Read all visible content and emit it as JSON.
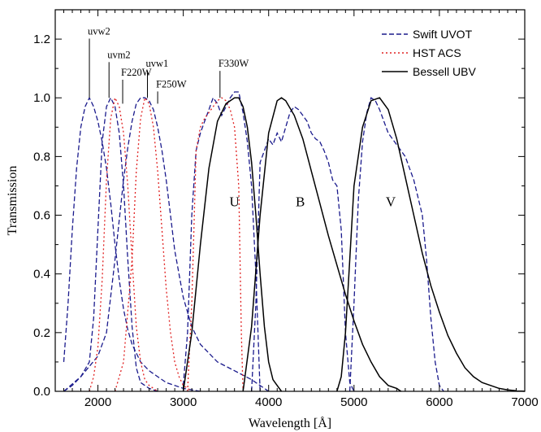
{
  "chart_data": {
    "type": "line",
    "xlabel": "Wavelength [Å]",
    "ylabel": "Transmission",
    "xlim": [
      1500,
      7000
    ],
    "ylim": [
      0,
      1.3
    ],
    "x_ticks": [
      2000,
      3000,
      4000,
      5000,
      6000,
      7000
    ],
    "y_ticks": [
      0.0,
      0.2,
      0.4,
      0.6,
      0.8,
      1.0,
      1.2
    ],
    "grid": false,
    "legend_position": "top-right",
    "legend": [
      {
        "label": "Swift UVOT",
        "style": "dashed",
        "color": "#1a1a8c"
      },
      {
        "label": "HST ACS",
        "style": "dotted",
        "color": "#e02020"
      },
      {
        "label": "Bessell UBV",
        "style": "solid",
        "color": "#000000"
      }
    ],
    "annotations": [
      {
        "text": "uvw2",
        "x": 1900,
        "y": 1.0,
        "ty": 1.21
      },
      {
        "text": "uvm2",
        "x": 2130,
        "y": 1.0,
        "ty": 1.13
      },
      {
        "text": "uvw1",
        "x": 2580,
        "y": 1.0,
        "ty": 1.1
      },
      {
        "text": "F220W",
        "x": 2290,
        "y": 0.98,
        "ty": 1.07
      },
      {
        "text": "F250W",
        "x": 2700,
        "y": 0.98,
        "ty": 1.03
      },
      {
        "text": "F330W",
        "x": 3430,
        "y": 1.0,
        "ty": 1.1
      }
    ],
    "band_labels": [
      {
        "text": "U",
        "x": 3600,
        "y": 0.63
      },
      {
        "text": "B",
        "x": 4370,
        "y": 0.63
      },
      {
        "text": "V",
        "x": 5430,
        "y": 0.63
      }
    ],
    "series": [
      {
        "name": "uvw2",
        "group": "Swift UVOT",
        "x": [
          1600,
          1650,
          1700,
          1750,
          1800,
          1850,
          1900,
          1950,
          2000,
          2050,
          2100,
          2150,
          2200,
          2250,
          2300,
          2350,
          2400,
          2500,
          2600,
          2700,
          2800,
          2900,
          3000,
          3100,
          3200
        ],
        "y": [
          0.1,
          0.3,
          0.55,
          0.76,
          0.9,
          0.97,
          1.0,
          0.97,
          0.92,
          0.85,
          0.76,
          0.64,
          0.5,
          0.38,
          0.28,
          0.21,
          0.16,
          0.1,
          0.07,
          0.05,
          0.03,
          0.02,
          0.01,
          0.005,
          0.0
        ]
      },
      {
        "name": "uvm2",
        "group": "Swift UVOT",
        "x": [
          1600,
          1700,
          1800,
          1900,
          1950,
          2000,
          2050,
          2100,
          2150,
          2200,
          2250,
          2300,
          2350,
          2400,
          2450,
          2500,
          2600,
          2700
        ],
        "y": [
          0.0,
          0.02,
          0.05,
          0.1,
          0.25,
          0.55,
          0.85,
          0.97,
          1.0,
          0.97,
          0.88,
          0.7,
          0.45,
          0.22,
          0.08,
          0.03,
          0.01,
          0.0
        ]
      },
      {
        "name": "uvw1",
        "group": "Swift UVOT",
        "x": [
          1600,
          1800,
          2000,
          2100,
          2200,
          2300,
          2350,
          2400,
          2450,
          2500,
          2550,
          2600,
          2650,
          2700,
          2750,
          2800,
          2850,
          2900,
          3000,
          3100,
          3200,
          3400,
          3600,
          3800,
          4000
        ],
        "y": [
          0.0,
          0.05,
          0.12,
          0.2,
          0.45,
          0.72,
          0.83,
          0.92,
          0.98,
          1.0,
          1.0,
          0.99,
          0.96,
          0.9,
          0.82,
          0.72,
          0.6,
          0.48,
          0.32,
          0.22,
          0.16,
          0.1,
          0.07,
          0.04,
          0.0
        ]
      },
      {
        "name": "u",
        "group": "Swift UVOT",
        "x": [
          3000,
          3050,
          3100,
          3150,
          3200,
          3250,
          3300,
          3350,
          3400,
          3450,
          3500,
          3550,
          3600,
          3650,
          3700,
          3750,
          3800,
          3850,
          3900
        ],
        "y": [
          0.02,
          0.2,
          0.6,
          0.82,
          0.88,
          0.92,
          0.96,
          1.0,
          0.98,
          0.94,
          0.97,
          1.0,
          1.02,
          1.02,
          0.95,
          0.85,
          0.7,
          0.4,
          0.0
        ]
      },
      {
        "name": "b",
        "group": "Swift UVOT",
        "x": [
          3800,
          3850,
          3900,
          3950,
          4000,
          4050,
          4100,
          4150,
          4200,
          4250,
          4300,
          4350,
          4400,
          4450,
          4500,
          4550,
          4600,
          4650,
          4700,
          4750,
          4800,
          4850,
          4900,
          4950,
          5000
        ],
        "y": [
          0.0,
          0.3,
          0.78,
          0.82,
          0.86,
          0.84,
          0.88,
          0.85,
          0.9,
          0.95,
          0.97,
          0.96,
          0.94,
          0.92,
          0.88,
          0.86,
          0.85,
          0.82,
          0.78,
          0.72,
          0.7,
          0.55,
          0.2,
          0.03,
          0.0
        ]
      },
      {
        "name": "v",
        "group": "Swift UVOT",
        "x": [
          4950,
          5000,
          5050,
          5100,
          5150,
          5200,
          5250,
          5300,
          5350,
          5400,
          5500,
          5600,
          5700,
          5800,
          5850,
          5900,
          5950,
          6000,
          6050
        ],
        "y": [
          0.0,
          0.3,
          0.65,
          0.85,
          0.95,
          1.0,
          0.99,
          0.96,
          0.92,
          0.88,
          0.84,
          0.8,
          0.72,
          0.6,
          0.45,
          0.25,
          0.1,
          0.02,
          0.0
        ]
      },
      {
        "name": "F220W",
        "group": "HST ACS",
        "x": [
          1900,
          1950,
          2000,
          2050,
          2100,
          2150,
          2200,
          2250,
          2300,
          2350,
          2400,
          2450,
          2500,
          2550,
          2600,
          2650,
          2700
        ],
        "y": [
          0.0,
          0.05,
          0.15,
          0.38,
          0.72,
          0.93,
          1.0,
          0.97,
          0.88,
          0.7,
          0.45,
          0.22,
          0.1,
          0.04,
          0.02,
          0.01,
          0.0
        ]
      },
      {
        "name": "F250W",
        "group": "HST ACS",
        "x": [
          2200,
          2300,
          2400,
          2450,
          2500,
          2550,
          2600,
          2650,
          2700,
          2750,
          2800,
          2850,
          2900,
          2950,
          3000,
          3050,
          3100
        ],
        "y": [
          0.0,
          0.1,
          0.45,
          0.75,
          0.93,
          1.0,
          0.98,
          0.9,
          0.75,
          0.55,
          0.35,
          0.2,
          0.1,
          0.05,
          0.02,
          0.01,
          0.0
        ]
      },
      {
        "name": "F330W",
        "group": "HST ACS",
        "x": [
          3050,
          3100,
          3120,
          3150,
          3200,
          3250,
          3300,
          3350,
          3400,
          3450,
          3500,
          3550,
          3600,
          3650,
          3680,
          3700
        ],
        "y": [
          0.0,
          0.3,
          0.5,
          0.82,
          0.9,
          0.93,
          0.95,
          0.97,
          0.99,
          1.0,
          0.99,
          0.96,
          0.9,
          0.7,
          0.2,
          0.0
        ]
      },
      {
        "name": "U",
        "group": "Bessell UBV",
        "x": [
          3000,
          3100,
          3200,
          3300,
          3400,
          3500,
          3600,
          3650,
          3700,
          3750,
          3800,
          3850,
          3900,
          3950,
          4000,
          4050,
          4100,
          4150
        ],
        "y": [
          0.0,
          0.2,
          0.5,
          0.76,
          0.92,
          0.98,
          1.0,
          1.0,
          0.97,
          0.9,
          0.78,
          0.6,
          0.4,
          0.22,
          0.1,
          0.04,
          0.02,
          0.0
        ]
      },
      {
        "name": "B",
        "group": "Bessell UBV",
        "x": [
          3700,
          3800,
          3900,
          4000,
          4100,
          4150,
          4200,
          4300,
          4400,
          4500,
          4600,
          4700,
          4800,
          4900,
          5000,
          5100,
          5200,
          5300,
          5400,
          5500,
          5550
        ],
        "y": [
          0.0,
          0.22,
          0.6,
          0.88,
          0.99,
          1.0,
          0.99,
          0.94,
          0.86,
          0.75,
          0.64,
          0.53,
          0.43,
          0.33,
          0.24,
          0.16,
          0.1,
          0.05,
          0.02,
          0.01,
          0.0
        ]
      },
      {
        "name": "V",
        "group": "Bessell UBV",
        "x": [
          4800,
          4850,
          4900,
          4950,
          5000,
          5100,
          5200,
          5300,
          5400,
          5500,
          5600,
          5700,
          5800,
          5900,
          6000,
          6100,
          6200,
          6300,
          6400,
          6500,
          6600,
          6700,
          6800,
          6900,
          7000
        ],
        "y": [
          0.0,
          0.05,
          0.2,
          0.45,
          0.7,
          0.9,
          0.99,
          1.0,
          0.96,
          0.86,
          0.73,
          0.6,
          0.47,
          0.36,
          0.27,
          0.19,
          0.13,
          0.08,
          0.05,
          0.03,
          0.02,
          0.01,
          0.005,
          0.002,
          0.0
        ]
      }
    ]
  }
}
